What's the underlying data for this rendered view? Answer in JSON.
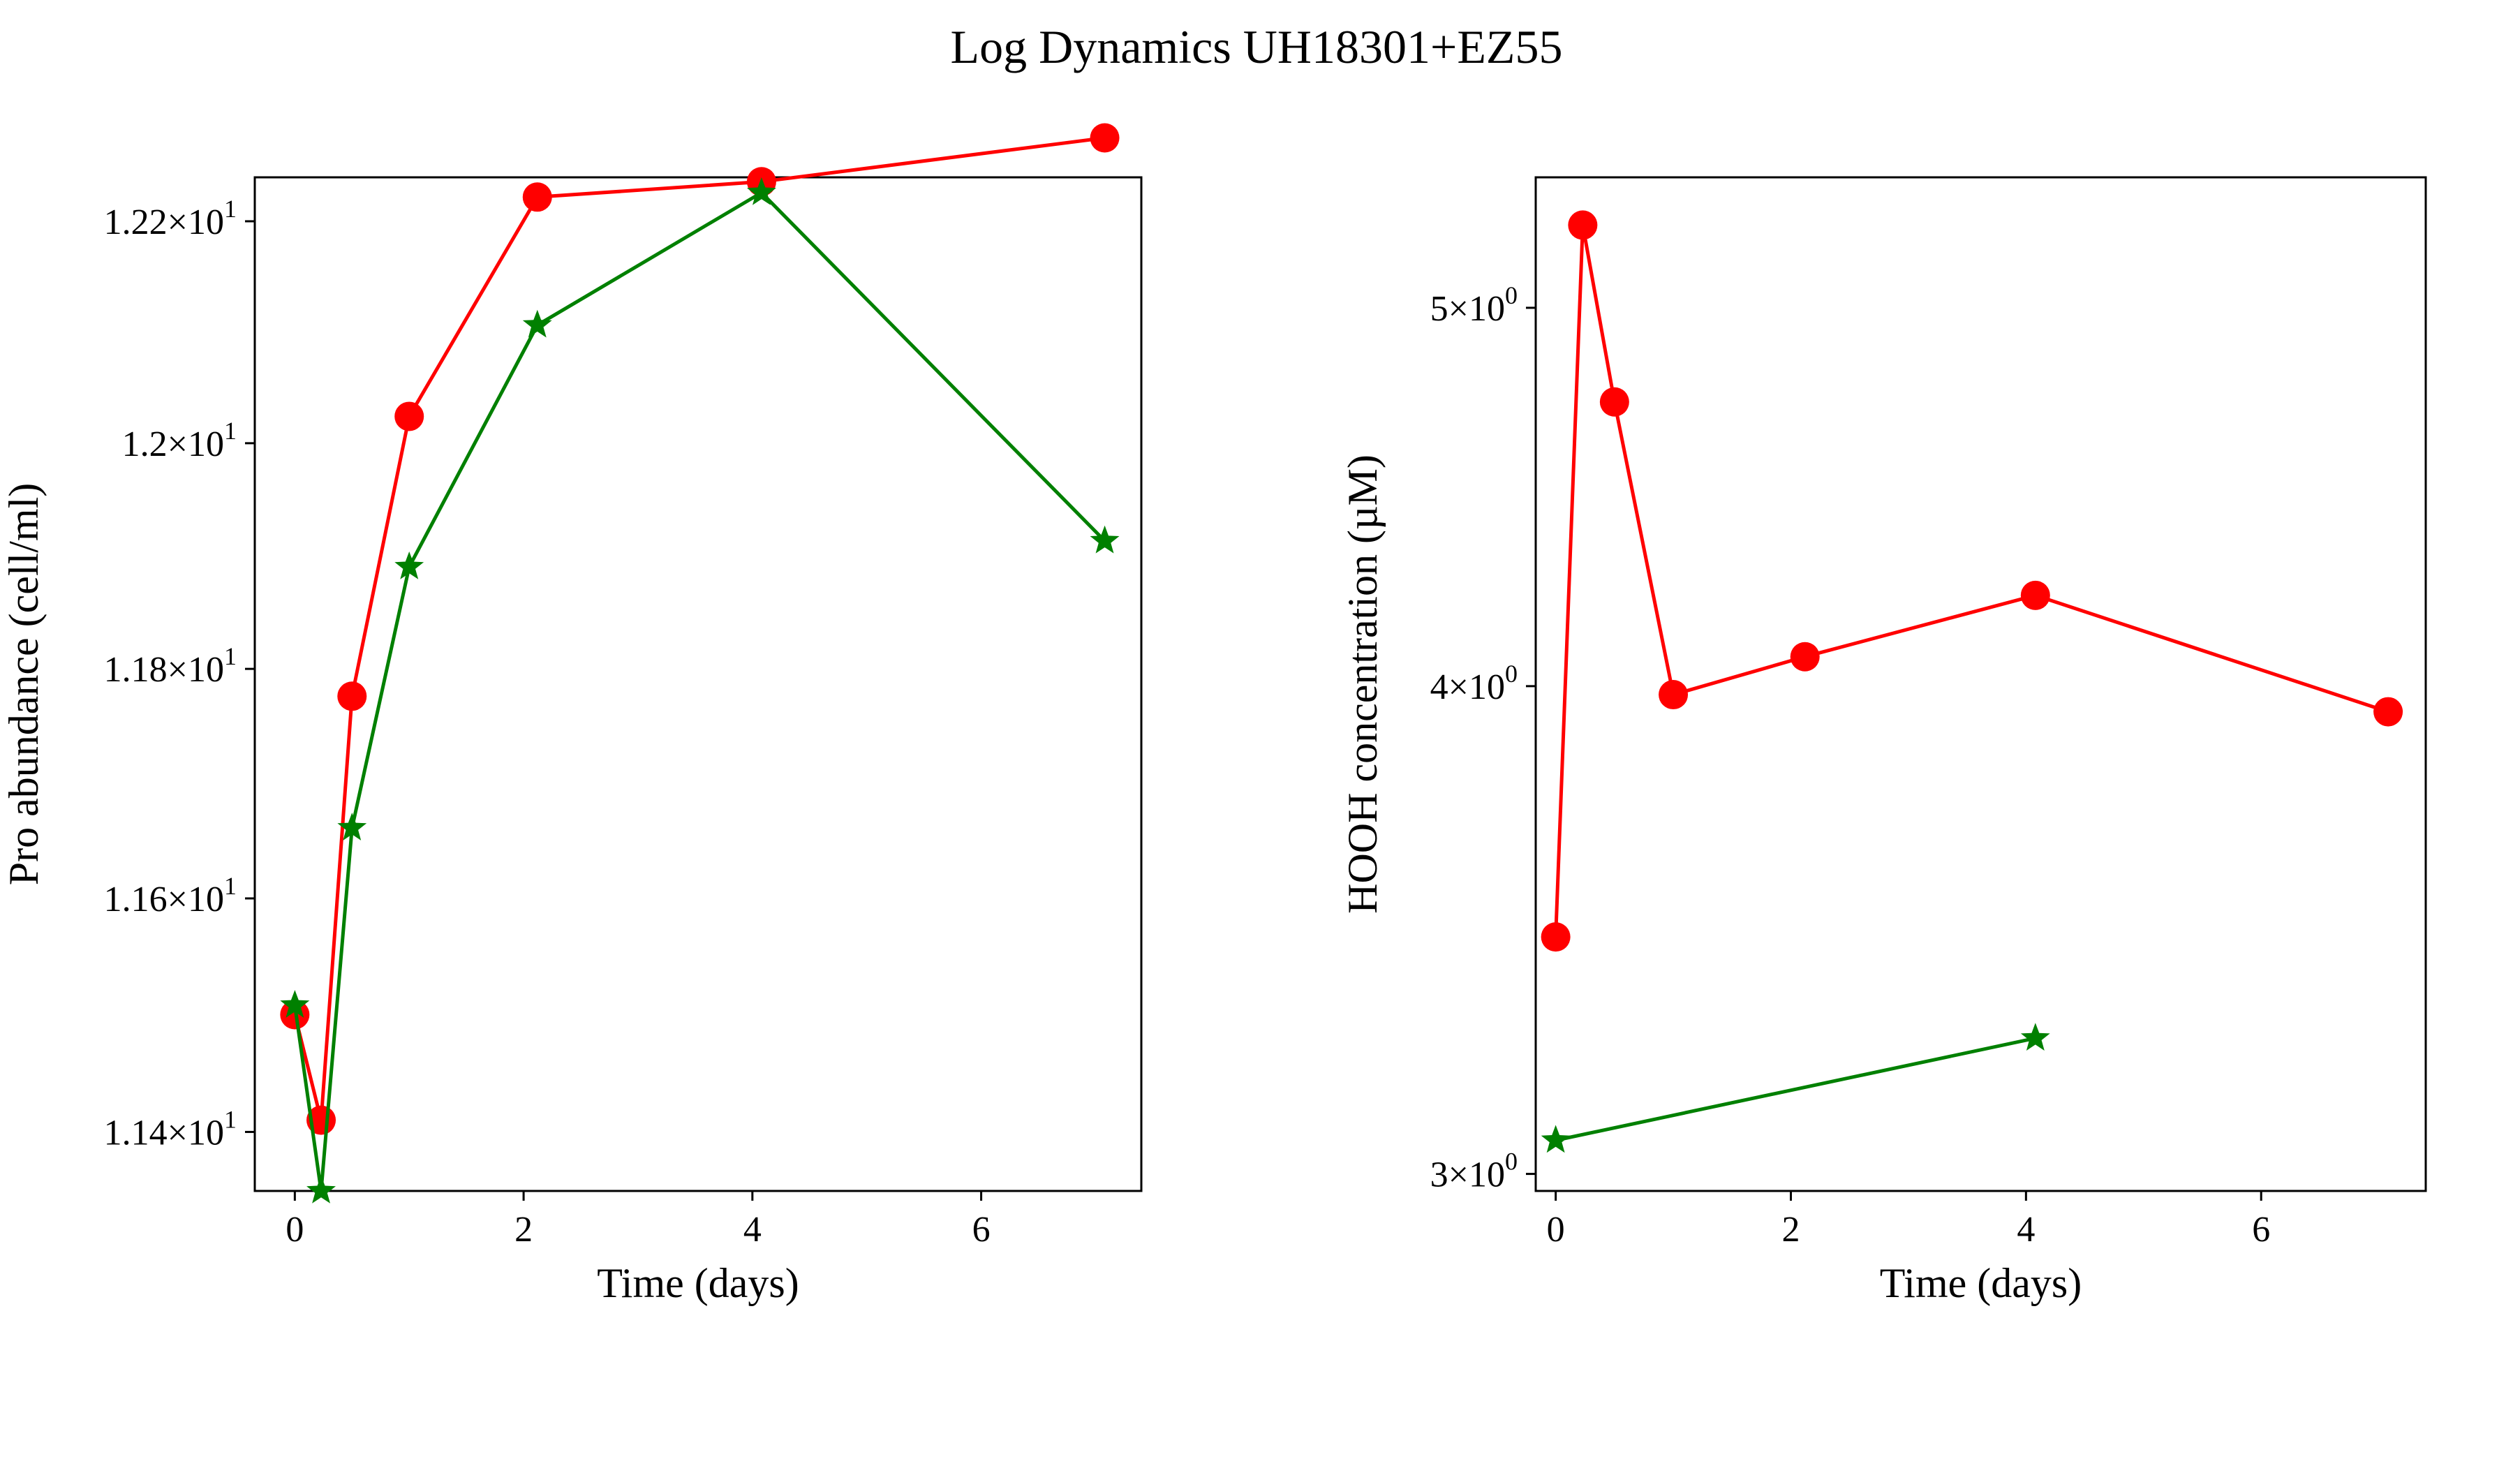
{
  "title": "Log Dynamics UH18301+EZ55",
  "colors": {
    "series1": "#ff0000",
    "series2": "#008000"
  },
  "chart_data": [
    {
      "type": "line",
      "xlabel": "Time (days)",
      "ylabel": "Pro abundance (cell/ml)",
      "xlim": [
        -0.35,
        7.4
      ],
      "ylim": [
        11.35,
        12.24
      ],
      "yscale": "log",
      "xticks": [
        0,
        2,
        4,
        6
      ],
      "xtick_labels": [
        "0",
        "2",
        "4",
        "6"
      ],
      "yticks": [
        {
          "value": 11.4,
          "mantissa": "1.14",
          "base": "10",
          "exp": "1"
        },
        {
          "value": 11.6,
          "mantissa": "1.16",
          "base": "10",
          "exp": "1"
        },
        {
          "value": 11.8,
          "mantissa": "1.18",
          "base": "10",
          "exp": "1"
        },
        {
          "value": 12.0,
          "mantissa": "1.2",
          "base": "10",
          "exp": "1"
        },
        {
          "value": 12.2,
          "mantissa": "1.22",
          "base": "10",
          "exp": "1"
        }
      ],
      "series": [
        {
          "color": "#ff0000",
          "marker": "circle",
          "x": [
            0,
            0.23,
            0.5,
            1.0,
            2.12,
            4.08,
            7.08
          ],
          "y": [
            11.5,
            11.41,
            11.776,
            12.024,
            12.222,
            12.236,
            12.276
          ]
        },
        {
          "color": "#008000",
          "marker": "star",
          "x": [
            0,
            0.23,
            0.5,
            1.0,
            2.12,
            4.08,
            7.08
          ],
          "y": [
            11.508,
            11.35,
            11.661,
            11.89,
            12.106,
            12.226,
            11.913
          ]
        }
      ]
    },
    {
      "type": "line",
      "xlabel": "Time (days)",
      "ylabel": "HOOH concentration (µM)",
      "xlim": [
        -0.17,
        7.4
      ],
      "ylim": [
        2.97,
        5.4
      ],
      "yscale": "log",
      "xticks": [
        0,
        2,
        4,
        6
      ],
      "xtick_labels": [
        "0",
        "2",
        "4",
        "6"
      ],
      "yticks": [
        {
          "value": 3,
          "mantissa": "3",
          "base": "10",
          "exp": "0"
        },
        {
          "value": 4,
          "mantissa": "4",
          "base": "10",
          "exp": "0"
        },
        {
          "value": 5,
          "mantissa": "5",
          "base": "10",
          "exp": "0"
        }
      ],
      "series": [
        {
          "color": "#ff0000",
          "marker": "circle",
          "x": [
            0,
            0.23,
            0.5,
            1.0,
            2.12,
            4.08,
            7.08
          ],
          "y": [
            3.45,
            5.25,
            4.73,
            3.98,
            4.07,
            4.22,
            3.94
          ]
        },
        {
          "color": "#008000",
          "marker": "star",
          "x": [
            0,
            4.08
          ],
          "y": [
            3.06,
            3.25
          ]
        }
      ]
    }
  ]
}
